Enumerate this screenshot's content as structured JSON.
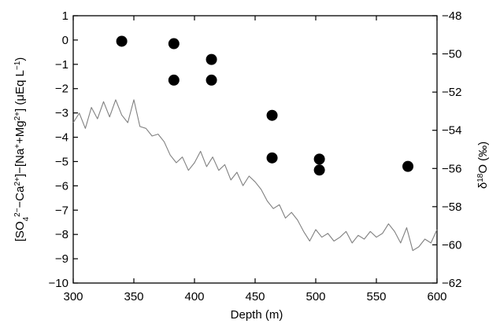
{
  "chart_data": {
    "type": "scatter",
    "xlabel": "Depth (m)",
    "ylabel_left": "[SO4 2−−Ca2+]−[Na+ +Mg2+] (μEq L−1)",
    "ylabel_right": "δ18O (‰)",
    "xlim": [
      300,
      600
    ],
    "ylim_left": [
      -10,
      1
    ],
    "ylim_right": [
      -62,
      -48
    ],
    "x_ticks": [
      300,
      350,
      400,
      450,
      500,
      550,
      600
    ],
    "y_left_ticks": [
      1,
      0,
      -1,
      -2,
      -3,
      -4,
      -5,
      -6,
      -7,
      -8,
      -9,
      -10
    ],
    "y_right_ticks": [
      -48,
      -50,
      -52,
      -54,
      -56,
      -58,
      -60,
      -62
    ],
    "grid": false,
    "series": [
      {
        "axis": "left",
        "kind": "scatter",
        "x": [
          340,
          383,
          383,
          414,
          414,
          464,
          464,
          503,
          503,
          576
        ],
        "y": [
          -0.05,
          -0.15,
          -1.65,
          -0.8,
          -1.65,
          -3.1,
          -4.85,
          -4.9,
          -5.35,
          -5.2
        ]
      },
      {
        "axis": "right",
        "kind": "line",
        "x": [
          300,
          305,
          310,
          315,
          320,
          325,
          330,
          335,
          340,
          345,
          350,
          355,
          360,
          365,
          370,
          375,
          380,
          385,
          390,
          395,
          400,
          405,
          410,
          415,
          420,
          425,
          430,
          435,
          440,
          445,
          450,
          455,
          460,
          465,
          470,
          475,
          480,
          485,
          490,
          495,
          500,
          505,
          510,
          515,
          520,
          525,
          530,
          535,
          540,
          545,
          550,
          555,
          560,
          565,
          570,
          575,
          580,
          585,
          590,
          595,
          600
        ],
        "y": [
          -53.6,
          -53.1,
          -53.9,
          -52.8,
          -53.4,
          -52.5,
          -53.3,
          -52.4,
          -53.2,
          -53.6,
          -52.4,
          -53.8,
          -53.9,
          -54.3,
          -54.2,
          -54.6,
          -55.3,
          -55.7,
          -55.4,
          -56.1,
          -55.7,
          -55.1,
          -55.9,
          -55.4,
          -56.1,
          -55.8,
          -56.6,
          -56.2,
          -56.9,
          -56.4,
          -56.7,
          -57.1,
          -57.7,
          -58.1,
          -57.9,
          -58.6,
          -58.3,
          -58.7,
          -59.3,
          -59.8,
          -59.2,
          -59.6,
          -59.4,
          -59.8,
          -59.6,
          -59.3,
          -59.9,
          -59.5,
          -59.7,
          -59.3,
          -59.6,
          -59.4,
          -58.9,
          -59.3,
          -59.9,
          -59.1,
          -60.3,
          -60.1,
          -59.7,
          -59.9,
          -59.2
        ]
      }
    ]
  }
}
